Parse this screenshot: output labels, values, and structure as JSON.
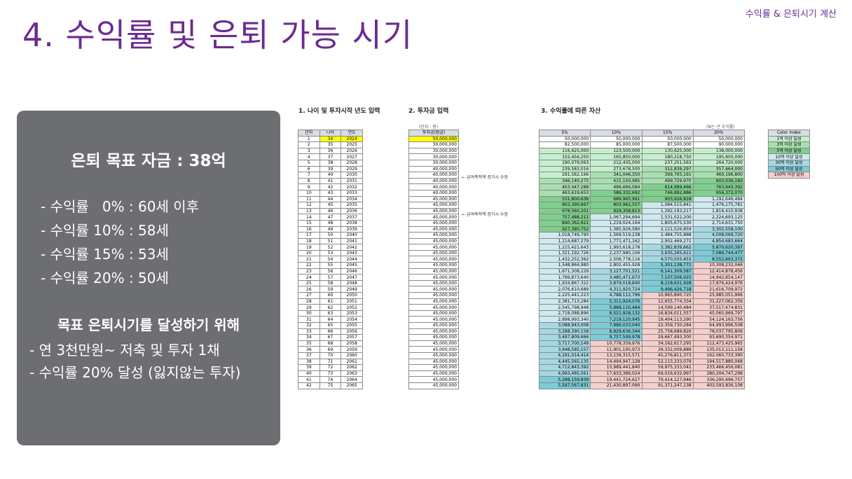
{
  "header": {
    "corner_label": "수익률 & 은퇴시기 계산",
    "title": "4. 수익률 및 은퇴 가능 시기"
  },
  "summary": {
    "goal": "은퇴 목표 자금 : 38억",
    "rates": [
      "- 수익률   0% : 60세 이후",
      "- 수익률 10% : 58세",
      "- 수익률 15% : 53세",
      "- 수익률 20% : 50세"
    ],
    "subhead": "목표 은퇴시기를 달성하기 위해",
    "plans": [
      "- 연 3천만원~ 저축 및 투자 1채",
      "- 수익률 20% 달성 (잃지않는 투자)"
    ]
  },
  "sheet": {
    "section1": "1. 나이 및 투자시작 년도 입력",
    "section2": "2. 투자금 입력",
    "section3": "3. 수익률에 따른 자산",
    "unit_left": "(단위 : 원)",
    "unit_right": "(N는 년 수익률)",
    "age_headers": [
      "년차",
      "나이",
      "연도"
    ],
    "invest_header": "투자금(원금)",
    "return_headers": [
      "5%",
      "10%",
      "15%",
      "20%"
    ],
    "notes": [
      "← 급여축적액 증가시 수정",
      "← 급여축적액 증가시 수정"
    ],
    "rows": [
      [
        "1",
        "34",
        "2024",
        "50,000,000",
        "50,000,000",
        "50,000,000",
        "50,000,000",
        "50,000,000"
      ],
      [
        "2",
        "35",
        "2025",
        "30,000,000",
        "82,500,000",
        "85,000,000",
        "87,500,000",
        "90,000,000"
      ],
      [
        "3",
        "36",
        "2026",
        "30,000,000",
        "116,625,000",
        "123,500,000",
        "130,625,000",
        "138,000,000"
      ],
      [
        "4",
        "37",
        "2027",
        "30,000,000",
        "152,456,250",
        "165,850,000",
        "180,218,750",
        "195,600,000"
      ],
      [
        "5",
        "38",
        "2028",
        "30,000,000",
        "190,079,063",
        "212,435,000",
        "237,251,563",
        "264,720,000"
      ],
      [
        "6",
        "39",
        "2029",
        "40,000,000",
        "239,583,016",
        "273,678,500",
        "312,839,297",
        "357,664,000"
      ],
      [
        "7",
        "40",
        "2030",
        "40,000,000",
        "291,562,166",
        "341,046,350",
        "399,765,191",
        "469,196,800"
      ],
      [
        "8",
        "41",
        "2031",
        "40,000,000",
        "346,140,275",
        "415,150,985",
        "499,729,970",
        "603,036,160"
      ],
      [
        "9",
        "42",
        "2032",
        "40,000,000",
        "403,447,288",
        "496,666,084",
        "614,689,466",
        "763,643,392"
      ],
      [
        "10",
        "43",
        "2033",
        "40,000,000",
        "463,619,653",
        "586,332,692",
        "746,892,886",
        "956,372,070"
      ],
      [
        "11",
        "44",
        "2034",
        "45,000,000",
        "531,800,636",
        "689,965,961",
        "903,926,818",
        "1,192,646,484"
      ],
      [
        "12",
        "45",
        "2035",
        "45,000,000",
        "603,390,667",
        "803,962,557",
        "1,084,515,841",
        "1,476,175,781"
      ],
      [
        "13",
        "46",
        "2036",
        "45,000,000",
        "678,560,201",
        "929,358,813",
        "1,292,193,217",
        "1,816,410,938"
      ],
      [
        "14",
        "47",
        "2037",
        "45,000,000",
        "757,488,211",
        "1,067,294,694",
        "1,531,022,200",
        "2,224,693,125"
      ],
      [
        "15",
        "48",
        "2038",
        "45,000,000",
        "840,362,621",
        "1,219,024,164",
        "1,805,675,530",
        "2,714,631,750"
      ],
      [
        "16",
        "49",
        "2039",
        "45,000,000",
        "927,380,752",
        "1,385,926,580",
        "2,121,526,859",
        "3,302,558,100"
      ],
      [
        "17",
        "50",
        "2040",
        "45,000,000",
        "1,018,749,790",
        "1,569,519,238",
        "2,484,755,888",
        "4,008,069,720"
      ],
      [
        "18",
        "51",
        "2041",
        "45,000,000",
        "1,114,687,279",
        "1,771,471,162",
        "2,902,469,271",
        "4,854,683,664"
      ],
      [
        "19",
        "52",
        "2042",
        "45,000,000",
        "1,215,421,643",
        "1,993,618,278",
        "3,382,839,662",
        "5,870,620,397"
      ],
      [
        "20",
        "53",
        "2043",
        "45,000,000",
        "1,321,192,726",
        "2,237,980,106",
        "3,935,265,611",
        "7,089,744,477"
      ],
      [
        "21",
        "54",
        "2044",
        "45,000,000",
        "1,432,252,362",
        "2,506,778,116",
        "4,570,555,453",
        "8,552,693,372"
      ],
      [
        "22",
        "55",
        "2045",
        "45,000,000",
        "1,548,864,980",
        "2,802,455,928",
        "5,301,138,771",
        "10,308,232,046"
      ],
      [
        "23",
        "56",
        "2046",
        "45,000,000",
        "1,671,308,229",
        "3,127,701,521",
        "6,141,309,587",
        "12,414,878,456"
      ],
      [
        "24",
        "57",
        "2047",
        "45,000,000",
        "1,799,873,640",
        "3,485,471,673",
        "7,107,506,025",
        "14,942,854,147"
      ],
      [
        "25",
        "58",
        "2048",
        "45,000,000",
        "1,934,867,322",
        "3,879,018,840",
        "8,218,631,928",
        "17,976,424,976"
      ],
      [
        "26",
        "59",
        "2049",
        "45,000,000",
        "2,076,610,689",
        "4,311,920,724",
        "9,496,426,718",
        "21,616,709,972"
      ],
      [
        "27",
        "60",
        "2050",
        "45,000,000",
        "2,225,441,223",
        "4,788,112,796",
        "10,965,890,725",
        "25,985,051,966"
      ],
      [
        "28",
        "61",
        "2051",
        "45,000,000",
        "2,381,713,284",
        "5,311,924,076",
        "12,655,774,334",
        "31,227,062,359"
      ],
      [
        "29",
        "62",
        "2052",
        "45,000,000",
        "2,545,798,948",
        "5,888,116,484",
        "14,599,140,484",
        "37,517,474,831"
      ],
      [
        "30",
        "63",
        "2053",
        "45,000,000",
        "2,718,088,896",
        "6,521,928,132",
        "16,834,011,557",
        "45,065,969,797"
      ],
      [
        "31",
        "64",
        "2054",
        "45,000,000",
        "2,898,993,340",
        "7,219,120,945",
        "19,404,113,290",
        "54,124,163,756"
      ],
      [
        "32",
        "65",
        "2055",
        "45,000,000",
        "3,088,943,008",
        "7,986,033,040",
        "22,359,730,284",
        "64,993,996,508"
      ],
      [
        "33",
        "66",
        "2056",
        "45,000,000",
        "3,288,390,158",
        "8,829,636,344",
        "25,758,689,826",
        "78,037,795,809"
      ],
      [
        "34",
        "67",
        "2057",
        "45,000,000",
        "3,497,809,666",
        "9,757,599,978",
        "29,667,493,300",
        "93,690,354,971"
      ],
      [
        "35",
        "68",
        "2058",
        "45,000,000",
        "3,717,700,149",
        "10,778,359,976",
        "34,162,617,295",
        "112,473,425,965"
      ],
      [
        "36",
        "69",
        "2059",
        "45,000,000",
        "3,948,585,157",
        "11,901,195,973",
        "39,332,009,889",
        "135,013,111,158"
      ],
      [
        "37",
        "70",
        "2060",
        "45,000,000",
        "4,191,014,414",
        "13,136,315,571",
        "45,276,811,373",
        "162,060,733,390"
      ],
      [
        "38",
        "71",
        "2061",
        "45,000,000",
        "4,445,565,135",
        "14,494,947,128",
        "52,113,333,079",
        "194,517,880,068"
      ],
      [
        "39",
        "72",
        "2062",
        "45,000,000",
        "4,712,843,392",
        "15,989,441,840",
        "59,975,333,041",
        "233,466,456,081"
      ],
      [
        "40",
        "73",
        "2063",
        "45,000,000",
        "4,993,485,561",
        "17,633,386,024",
        "69,016,632,997",
        "280,204,747,298"
      ],
      [
        "41",
        "74",
        "2064",
        "45,000,000",
        "5,288,159,839",
        "19,441,724,627",
        "79,414,127,946",
        "336,290,696,757"
      ],
      [
        "42",
        "75",
        "2065",
        "45,000,000",
        "5,597,567,831",
        "21,430,897,090",
        "91,371,247,138",
        "403,593,836,108"
      ]
    ],
    "legend": {
      "title": "Color Index",
      "items": [
        {
          "label": "1억 이상 달성",
          "color": "#c6efce"
        },
        {
          "label": "3억 이상 달성",
          "color": "#a9dfb0"
        },
        {
          "label": "5억 이상 달성",
          "color": "#7fd08c"
        },
        {
          "label": "10억 이상 달성",
          "color": "#cfe9ef"
        },
        {
          "label": "30억 이상 달성",
          "color": "#a6d8e3"
        },
        {
          "label": "50억 이상 달성",
          "color": "#7ccbd6"
        },
        {
          "label": "100억 이상 달성",
          "color": "#f5cfcb"
        }
      ]
    }
  }
}
